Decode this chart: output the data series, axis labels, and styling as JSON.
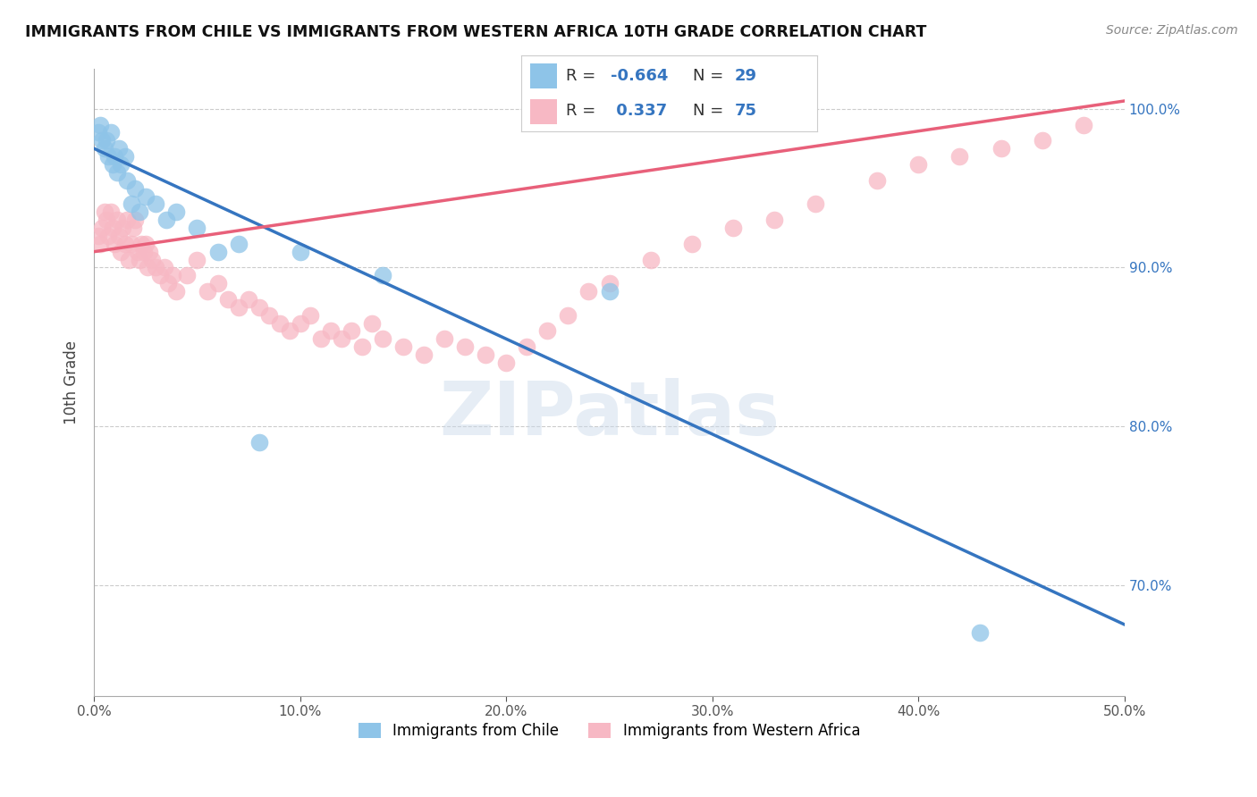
{
  "title": "IMMIGRANTS FROM CHILE VS IMMIGRANTS FROM WESTERN AFRICA 10TH GRADE CORRELATION CHART",
  "source": "Source: ZipAtlas.com",
  "ylabel": "10th Grade",
  "x_min": 0.0,
  "x_max": 50.0,
  "y_min": 63.0,
  "y_max": 102.5,
  "y_ticks": [
    70.0,
    80.0,
    90.0,
    100.0
  ],
  "legend_labels": [
    "Immigrants from Chile",
    "Immigrants from Western Africa"
  ],
  "r_chile": -0.664,
  "n_chile": 29,
  "r_wafrica": 0.337,
  "n_wafrica": 75,
  "blue_color": "#8ec4e8",
  "pink_color": "#f7b8c4",
  "blue_line_color": "#3575c0",
  "pink_line_color": "#e8607a",
  "watermark": "ZIPatlas",
  "chile_scatter_x": [
    0.2,
    0.3,
    0.4,
    0.5,
    0.6,
    0.7,
    0.8,
    0.9,
    1.0,
    1.1,
    1.2,
    1.3,
    1.5,
    1.6,
    1.8,
    2.0,
    2.2,
    2.5,
    3.0,
    3.5,
    4.0,
    5.0,
    6.0,
    7.0,
    8.0,
    10.0,
    14.0,
    25.0,
    43.0
  ],
  "chile_scatter_y": [
    98.5,
    99.0,
    98.0,
    97.5,
    98.0,
    97.0,
    98.5,
    96.5,
    97.0,
    96.0,
    97.5,
    96.5,
    97.0,
    95.5,
    94.0,
    95.0,
    93.5,
    94.5,
    94.0,
    93.0,
    93.5,
    92.5,
    91.0,
    91.5,
    79.0,
    91.0,
    89.5,
    88.5,
    67.0
  ],
  "wafrica_scatter_x": [
    0.2,
    0.3,
    0.4,
    0.5,
    0.6,
    0.7,
    0.8,
    0.9,
    1.0,
    1.1,
    1.2,
    1.3,
    1.4,
    1.5,
    1.6,
    1.7,
    1.8,
    1.9,
    2.0,
    2.1,
    2.2,
    2.3,
    2.4,
    2.5,
    2.6,
    2.7,
    2.8,
    3.0,
    3.2,
    3.4,
    3.6,
    3.8,
    4.0,
    4.5,
    5.0,
    5.5,
    6.0,
    6.5,
    7.0,
    7.5,
    8.0,
    8.5,
    9.0,
    9.5,
    10.0,
    10.5,
    11.0,
    11.5,
    12.0,
    12.5,
    13.0,
    13.5,
    14.0,
    15.0,
    16.0,
    17.0,
    18.0,
    19.0,
    20.0,
    21.0,
    22.0,
    23.0,
    24.0,
    25.0,
    27.0,
    29.0,
    31.0,
    33.0,
    35.0,
    38.0,
    40.0,
    42.0,
    44.0,
    46.0,
    48.0
  ],
  "wafrica_scatter_y": [
    92.0,
    91.5,
    92.5,
    93.5,
    93.0,
    92.0,
    93.5,
    92.5,
    91.5,
    93.0,
    92.0,
    91.0,
    92.5,
    91.5,
    93.0,
    90.5,
    91.5,
    92.5,
    93.0,
    91.0,
    90.5,
    91.5,
    91.0,
    91.5,
    90.0,
    91.0,
    90.5,
    90.0,
    89.5,
    90.0,
    89.0,
    89.5,
    88.5,
    89.5,
    90.5,
    88.5,
    89.0,
    88.0,
    87.5,
    88.0,
    87.5,
    87.0,
    86.5,
    86.0,
    86.5,
    87.0,
    85.5,
    86.0,
    85.5,
    86.0,
    85.0,
    86.5,
    85.5,
    85.0,
    84.5,
    85.5,
    85.0,
    84.5,
    84.0,
    85.0,
    86.0,
    87.0,
    88.5,
    89.0,
    90.5,
    91.5,
    92.5,
    93.0,
    94.0,
    95.5,
    96.5,
    97.0,
    97.5,
    98.0,
    99.0
  ],
  "blue_trendline_x0": 0.0,
  "blue_trendline_y0": 97.5,
  "blue_trendline_x1": 50.0,
  "blue_trendline_y1": 67.5,
  "pink_trendline_x0": 0.0,
  "pink_trendline_y0": 91.0,
  "pink_trendline_x1": 50.0,
  "pink_trendline_y1": 100.5
}
